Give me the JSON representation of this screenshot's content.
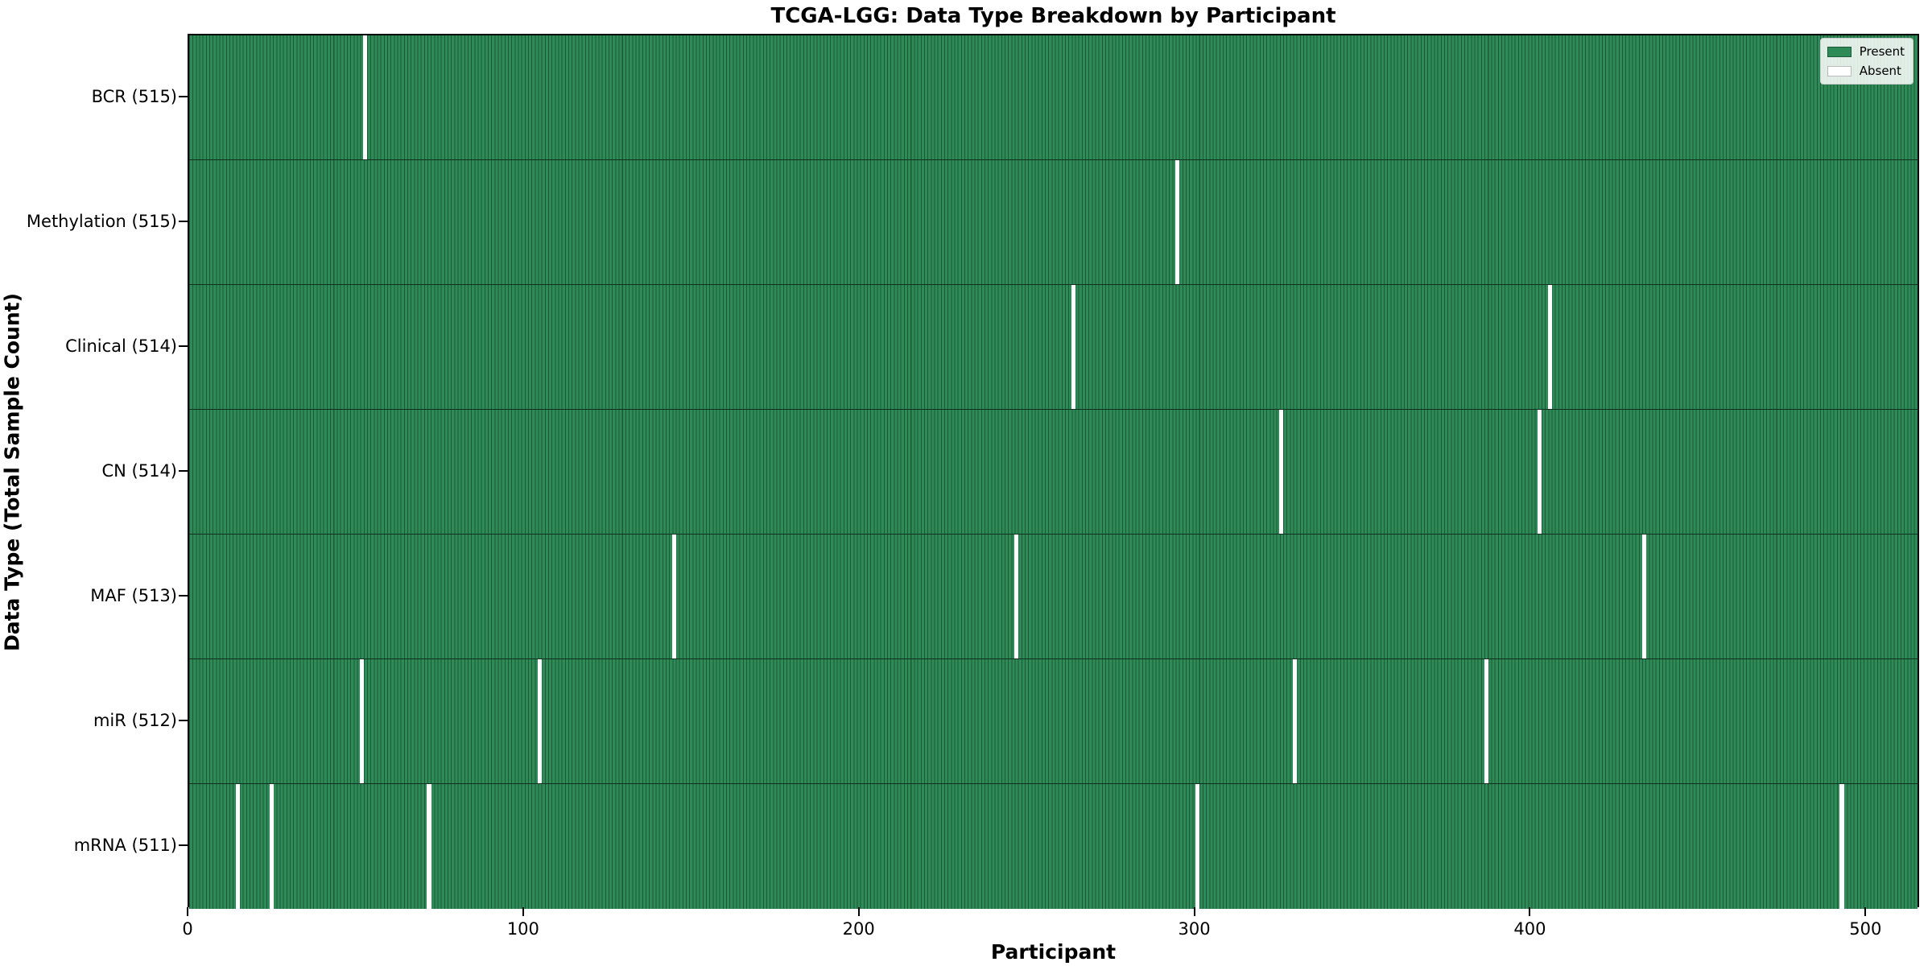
{
  "title": "TCGA-LGG: Data Type Breakdown by Participant",
  "x_axis": {
    "label": "Participant",
    "ticks": [
      0,
      100,
      200,
      300,
      400,
      500
    ]
  },
  "y_axis": {
    "label": "Data Type (Total Sample Count)"
  },
  "legend": {
    "present_label": "Present",
    "absent_label": "Absent"
  },
  "colors": {
    "present_fill": "#2e8b57",
    "bar_edge": "#1e5937",
    "absent_fill": "#ffffff",
    "axis": "#000000",
    "background": "#ffffff",
    "legend_border": "#cccccc"
  },
  "chart_data": {
    "type": "heatmap",
    "title": "TCGA-LGG: Data Type Breakdown by Participant",
    "xlabel": "Participant",
    "ylabel": "Data Type (Total Sample Count)",
    "legend_entries": [
      "Present",
      "Absent"
    ],
    "legend_position": "upper right",
    "n_participants": 516,
    "x_ticks": [
      0,
      100,
      200,
      300,
      400,
      500
    ],
    "xlim": [
      0,
      516
    ],
    "rows": [
      {
        "label": "BCR (515)",
        "name": "BCR",
        "present_count": 515,
        "absent_participant_indices": [
          52
        ]
      },
      {
        "label": "Methylation (515)",
        "name": "Methylation",
        "present_count": 515,
        "absent_participant_indices": [
          294
        ]
      },
      {
        "label": "Clinical (514)",
        "name": "Clinical",
        "present_count": 514,
        "absent_participant_indices": [
          263,
          405
        ]
      },
      {
        "label": "CN (514)",
        "name": "CN",
        "present_count": 514,
        "absent_participant_indices": [
          325,
          402
        ]
      },
      {
        "label": "MAF (513)",
        "name": "MAF",
        "present_count": 513,
        "absent_participant_indices": [
          144,
          246,
          433
        ]
      },
      {
        "label": "miR (512)",
        "name": "miR",
        "present_count": 512,
        "absent_participant_indices": [
          51,
          104,
          329,
          386
        ]
      },
      {
        "label": "mRNA (511)",
        "name": "mRNA",
        "present_count": 511,
        "absent_participant_indices": [
          14,
          24,
          71,
          300,
          492
        ]
      }
    ]
  }
}
